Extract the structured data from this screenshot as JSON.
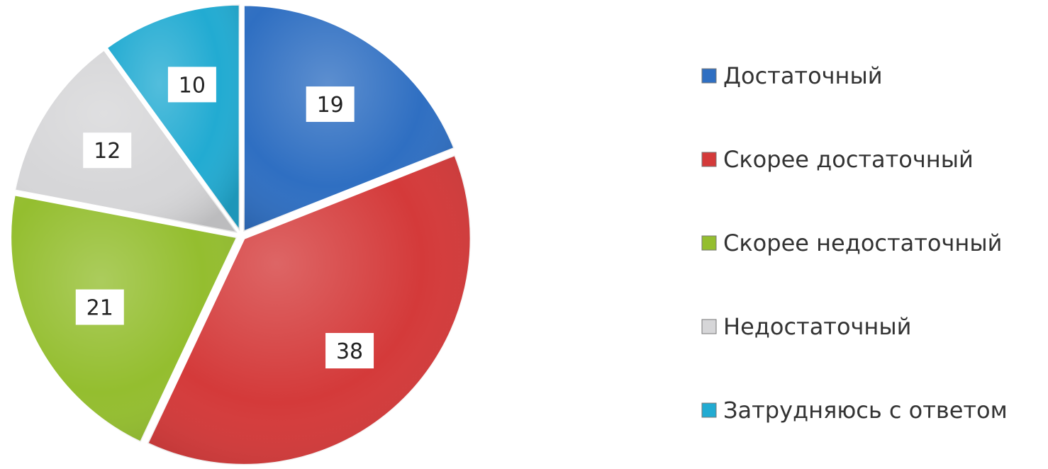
{
  "chart_data": {
    "type": "pie",
    "title": "",
    "legend_position": "right",
    "slices": [
      {
        "label": "Достаточный",
        "value": 19,
        "color": "#2f6fc2"
      },
      {
        "label": "Скорее достаточный",
        "value": 38,
        "color": "#d43a3a"
      },
      {
        "label": "Скорее недостаточный",
        "value": 21,
        "color": "#94be2f"
      },
      {
        "label": "Недостаточный",
        "value": 12,
        "color": "#d6d6d8"
      },
      {
        "label": "Затрудняюсь с ответом",
        "value": 10,
        "color": "#22abd2"
      }
    ]
  }
}
